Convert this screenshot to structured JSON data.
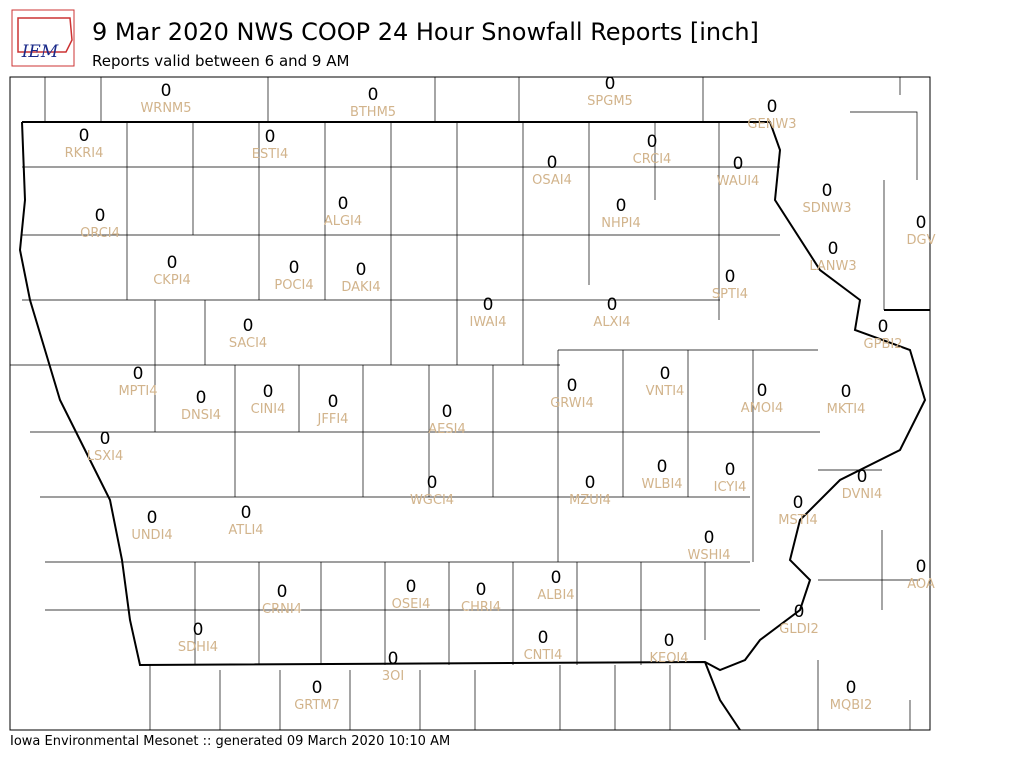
{
  "header": {
    "logo_text": "IEM",
    "title": "9 Mar 2020 NWS COOP 24 Hour Snowfall Reports [inch]",
    "subtitle": "Reports valid between 6 and 9 AM"
  },
  "footer": "Iowa Environmental Mesonet :: generated 09 March 2020 10:10 AM",
  "stations": [
    {
      "id": "WRNM5",
      "value": 0
    },
    {
      "id": "BTHM5",
      "value": 0
    },
    {
      "id": "SPGM5",
      "value": 0
    },
    {
      "id": "GENW3",
      "value": 0
    },
    {
      "id": "RKRI4",
      "value": 0
    },
    {
      "id": "ESTI4",
      "value": 0
    },
    {
      "id": "OSAI4",
      "value": 0
    },
    {
      "id": "CRCI4",
      "value": 0
    },
    {
      "id": "WAUI4",
      "value": 0
    },
    {
      "id": "SDNW3",
      "value": 0
    },
    {
      "id": "ORCI4",
      "value": 0
    },
    {
      "id": "ALGI4",
      "value": 0
    },
    {
      "id": "NHPI4",
      "value": 0
    },
    {
      "id": "DGV",
      "value": 0
    },
    {
      "id": "LANW3",
      "value": 0
    },
    {
      "id": "CKPI4",
      "value": 0
    },
    {
      "id": "POCI4",
      "value": 0
    },
    {
      "id": "DAKI4",
      "value": 0
    },
    {
      "id": "SPTI4",
      "value": 0
    },
    {
      "id": "IWAI4",
      "value": 0
    },
    {
      "id": "ALXI4",
      "value": 0
    },
    {
      "id": "GPBI2",
      "value": 0
    },
    {
      "id": "SACI4",
      "value": 0
    },
    {
      "id": "MPTI4",
      "value": 0
    },
    {
      "id": "DNSI4",
      "value": 0
    },
    {
      "id": "CINI4",
      "value": 0
    },
    {
      "id": "JFFI4",
      "value": 0
    },
    {
      "id": "GRWI4",
      "value": 0
    },
    {
      "id": "VNTI4",
      "value": 0
    },
    {
      "id": "AMOI4",
      "value": 0
    },
    {
      "id": "MKTI4",
      "value": 0
    },
    {
      "id": "AESI4",
      "value": 0
    },
    {
      "id": "LSXI4",
      "value": 0
    },
    {
      "id": "WGCI4",
      "value": 0
    },
    {
      "id": "MZUI4",
      "value": 0
    },
    {
      "id": "WLBI4",
      "value": 0
    },
    {
      "id": "ICYI4",
      "value": 0
    },
    {
      "id": "DVNI4",
      "value": 0
    },
    {
      "id": "MSTI4",
      "value": 0
    },
    {
      "id": "UNDI4",
      "value": 0
    },
    {
      "id": "ATLI4",
      "value": 0
    },
    {
      "id": "WSHI4",
      "value": 0
    },
    {
      "id": "AOA",
      "value": 0
    },
    {
      "id": "CRNI4",
      "value": 0
    },
    {
      "id": "OSEI4",
      "value": 0
    },
    {
      "id": "CHRI4",
      "value": 0
    },
    {
      "id": "ALBI4",
      "value": 0
    },
    {
      "id": "GLDI2",
      "value": 0
    },
    {
      "id": "SDHI4",
      "value": 0
    },
    {
      "id": "CNTI4",
      "value": 0
    },
    {
      "id": "KEOI4",
      "value": 0
    },
    {
      "id": "3OI",
      "value": 0
    },
    {
      "id": "GRTM7",
      "value": 0
    },
    {
      "id": "MQBI2",
      "value": 0
    }
  ]
}
